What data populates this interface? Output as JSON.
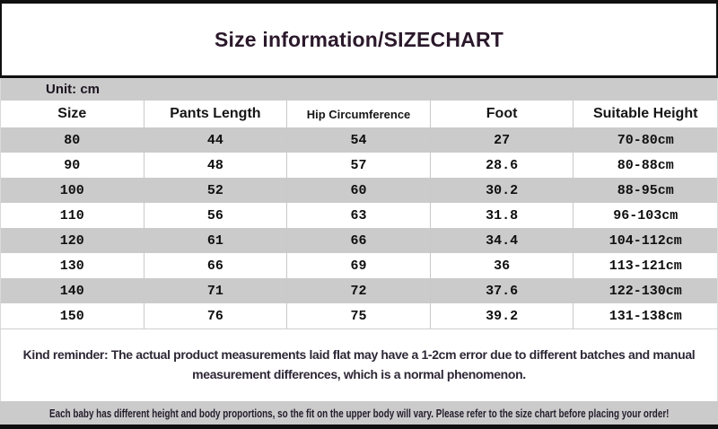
{
  "title": "Size information/SIZECHART",
  "unit_label": "Unit: cm",
  "table": {
    "headers": [
      "Size",
      "Pants Length",
      "Hip Circumference",
      "Foot",
      "Suitable Height"
    ],
    "rows": [
      [
        "80",
        "44",
        "54",
        "27",
        "70-80cm"
      ],
      [
        "90",
        "48",
        "57",
        "28.6",
        "80-88cm"
      ],
      [
        "100",
        "52",
        "60",
        "30.2",
        "88-95cm"
      ],
      [
        "110",
        "56",
        "63",
        "31.8",
        "96-103cm"
      ],
      [
        "120",
        "61",
        "66",
        "34.4",
        "104-112cm"
      ],
      [
        "130",
        "66",
        "69",
        "36",
        "113-121cm"
      ],
      [
        "140",
        "71",
        "72",
        "37.6",
        "122-130cm"
      ],
      [
        "150",
        "76",
        "75",
        "39.2",
        "131-138cm"
      ]
    ]
  },
  "reminder_text": "Kind reminder: The actual product measurements laid flat may have a 1-2cm error due to different batches and manual measurement differences, which is a normal phenomenon.",
  "footer_note": "Each baby has different height and body proportions, so the fit on the upper body will vary. Please refer to the size chart before placing your order!",
  "colors": {
    "bar_black": "#101010",
    "row_gray": "#cbcbcb",
    "title_text": "#2b192b",
    "body_text": "#0f0f0f"
  }
}
